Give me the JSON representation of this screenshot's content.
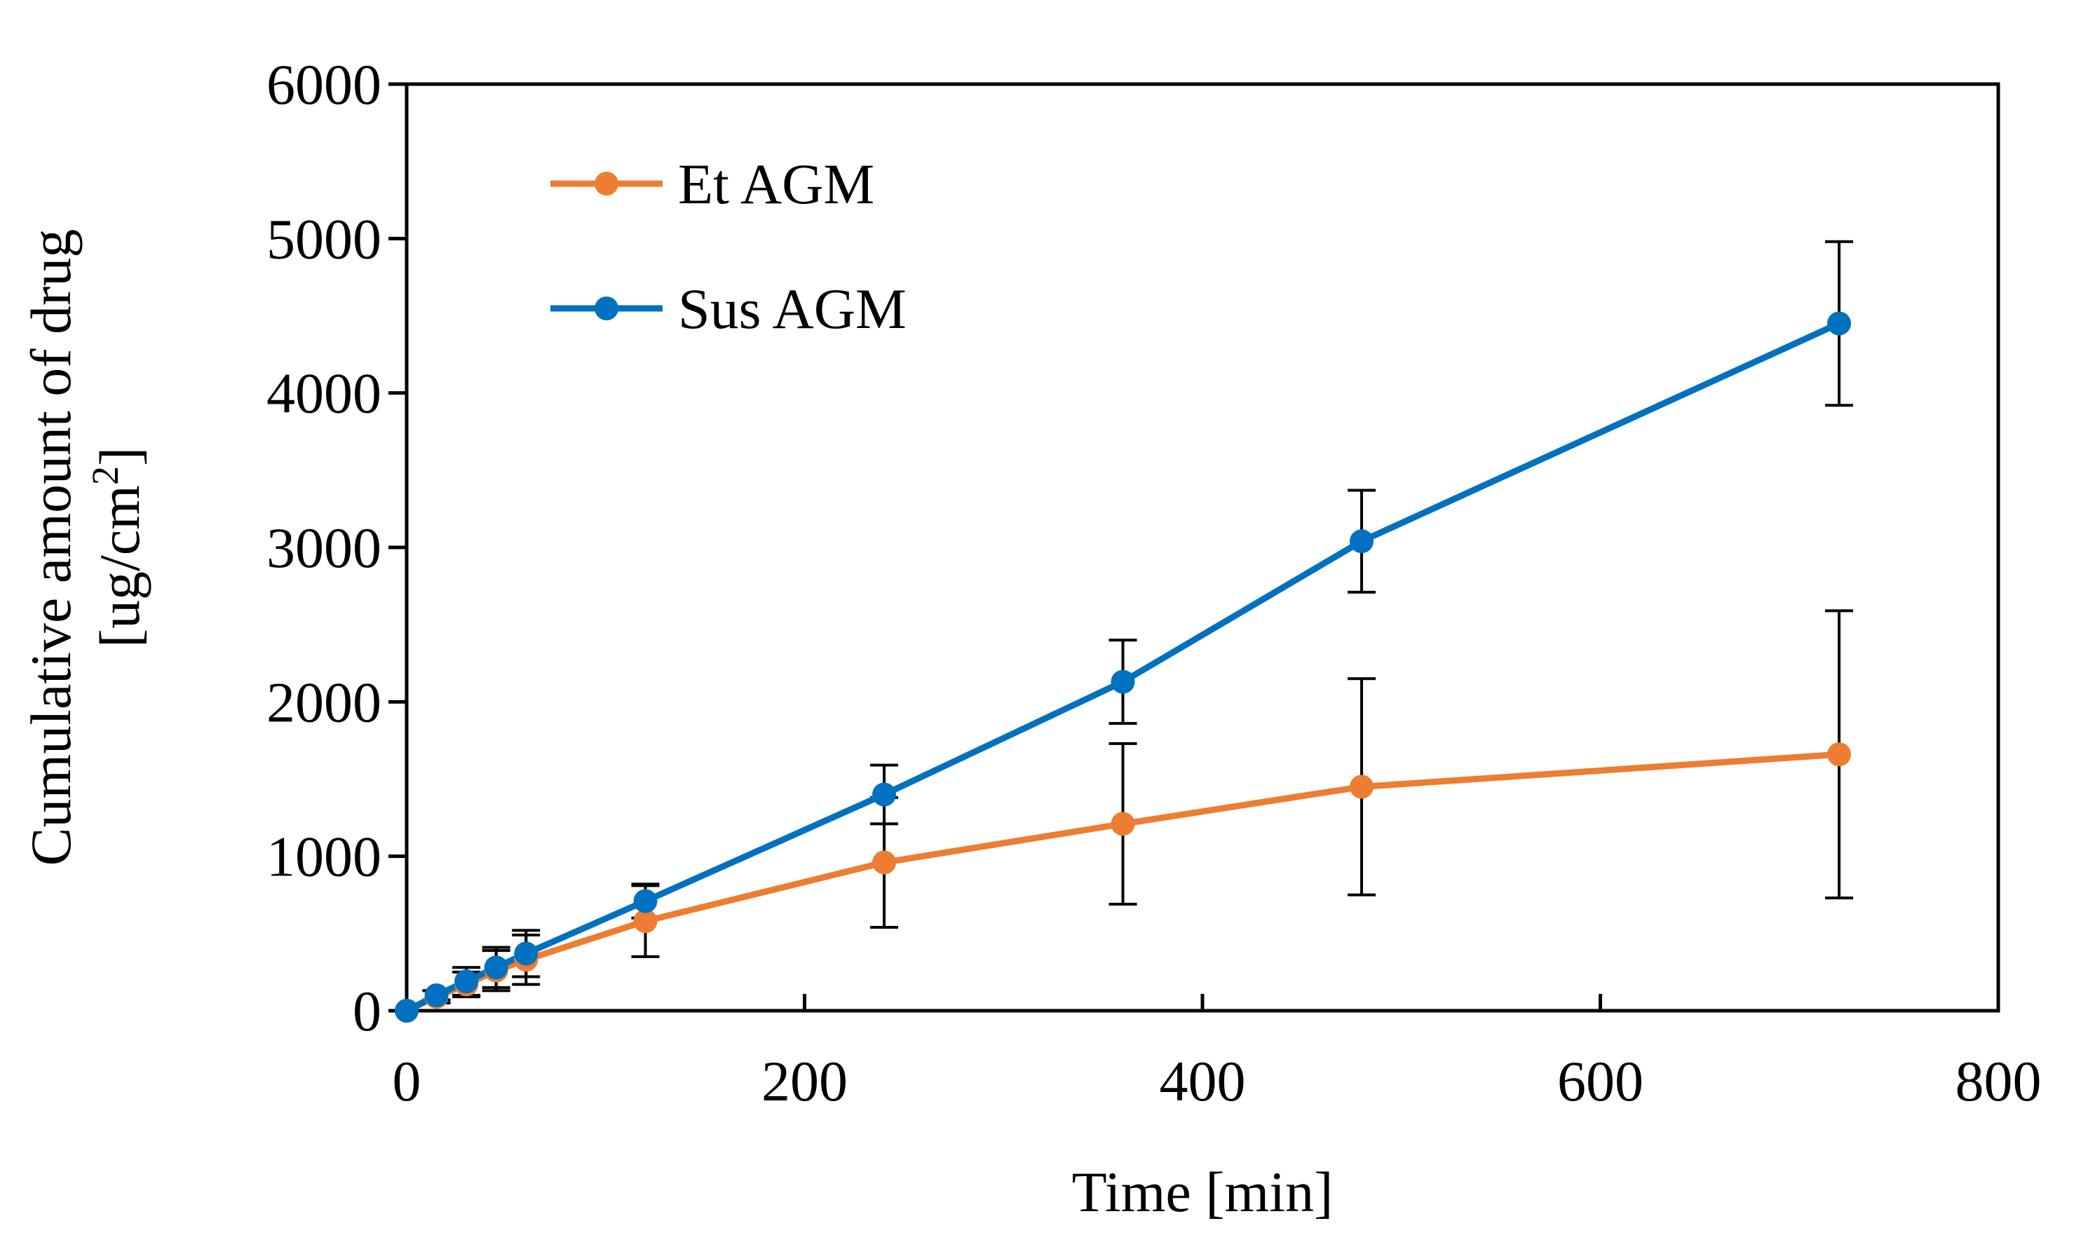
{
  "chart_data": {
    "type": "line",
    "title": "",
    "xlabel": "Time [min]",
    "ylabel_line1": "Cumulative amount of drug",
    "ylabel_line2_main": "[ug/cm",
    "ylabel_line2_sup": "2",
    "ylabel_line2_end": "]",
    "xlim": [
      0,
      800
    ],
    "ylim": [
      0,
      6000
    ],
    "x_ticks": [
      0,
      200,
      400,
      600,
      800
    ],
    "y_ticks": [
      0,
      1000,
      2000,
      3000,
      4000,
      5000,
      6000
    ],
    "x_tick_labels": [
      "0",
      "200",
      "400",
      "600",
      "800"
    ],
    "y_tick_labels": [
      "0",
      "1000",
      "2000",
      "3000",
      "4000",
      "5000",
      "6000"
    ],
    "grid": false,
    "legend_position": "top-left",
    "series": [
      {
        "name": "Et AGM",
        "color": "#ED7D31",
        "x": [
          0,
          15,
          30,
          45,
          60,
          120,
          240,
          360,
          480,
          720
        ],
        "y": [
          0,
          90,
          170,
          260,
          330,
          580,
          960,
          1210,
          1450,
          1660
        ],
        "error": [
          0,
          40,
          80,
          130,
          160,
          230,
          420,
          520,
          700,
          930
        ]
      },
      {
        "name": "Sus AGM",
        "color": "#0070C0",
        "x": [
          0,
          15,
          30,
          45,
          60,
          120,
          240,
          360,
          480,
          720
        ],
        "y": [
          0,
          100,
          190,
          280,
          370,
          710,
          1400,
          2130,
          3040,
          4450
        ],
        "error": [
          0,
          30,
          90,
          130,
          150,
          110,
          190,
          270,
          330,
          530
        ]
      }
    ]
  }
}
